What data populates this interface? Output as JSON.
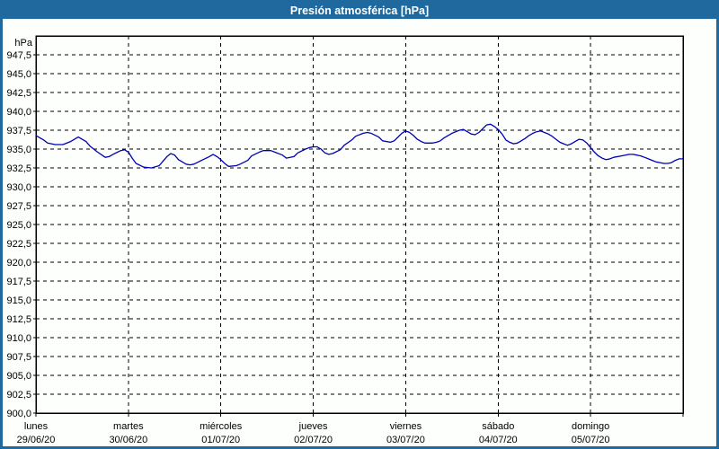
{
  "window": {
    "title": "Presión atmosférica [hPa]"
  },
  "colors": {
    "frame": "#1f699e",
    "titlebar": "#1f699e",
    "title_text": "#ffffff",
    "background": "#fdfffd",
    "plot_border": "#000000",
    "gridline": "#000000",
    "tick_label": "#000000",
    "line": "#0000b2"
  },
  "chart_data": {
    "type": "line",
    "title": "Presión atmosférica [hPa]",
    "ylabel": "hPa",
    "ylim": [
      900,
      950
    ],
    "ytick_step": 2.5,
    "ytick_labels": [
      "900,0",
      "902,5",
      "905,0",
      "907,5",
      "910,0",
      "912,5",
      "915,0",
      "917,5",
      "920,0",
      "922,5",
      "925,0",
      "927,5",
      "930,0",
      "932,5",
      "935,0",
      "937,5",
      "940,0",
      "942,5",
      "945,0",
      "947,5"
    ],
    "grid": "dashed",
    "legend": "none",
    "x_unit": "hours",
    "xlim": [
      0,
      168
    ],
    "hours_per_day": 24,
    "categories": [
      {
        "day": "lunes",
        "date": "29/06/20"
      },
      {
        "day": "martes",
        "date": "30/06/20"
      },
      {
        "day": "miércoles",
        "date": "01/07/20"
      },
      {
        "day": "jueves",
        "date": "02/07/20"
      },
      {
        "day": "viernes",
        "date": "03/07/20"
      },
      {
        "day": "sábado",
        "date": "04/07/20"
      },
      {
        "day": "domingo",
        "date": "05/07/20"
      }
    ],
    "series": [
      {
        "name": "Presión atmosférica",
        "color": "#0000b2",
        "points": [
          [
            0,
            936.8
          ],
          [
            2,
            936.2
          ],
          [
            3,
            935.8
          ],
          [
            5,
            935.6
          ],
          [
            7,
            935.6
          ],
          [
            9,
            936.0
          ],
          [
            11,
            936.6
          ],
          [
            13,
            936.0
          ],
          [
            14,
            935.4
          ],
          [
            16,
            934.6
          ],
          [
            18,
            933.9
          ],
          [
            19,
            934.0
          ],
          [
            20,
            934.3
          ],
          [
            22,
            934.8
          ],
          [
            23,
            934.9
          ],
          [
            24,
            934.6
          ],
          [
            25,
            933.8
          ],
          [
            26,
            933.1
          ],
          [
            28,
            932.6
          ],
          [
            30,
            932.5
          ],
          [
            32,
            932.8
          ],
          [
            33,
            933.4
          ],
          [
            34,
            934.0
          ],
          [
            35,
            934.4
          ],
          [
            36,
            934.2
          ],
          [
            37,
            933.6
          ],
          [
            39,
            933.0
          ],
          [
            40,
            932.9
          ],
          [
            41,
            933.0
          ],
          [
            43,
            933.5
          ],
          [
            45,
            934.0
          ],
          [
            46,
            934.3
          ],
          [
            47,
            934.0
          ],
          [
            48,
            933.6
          ],
          [
            49,
            933.1
          ],
          [
            50,
            932.7
          ],
          [
            52,
            932.8
          ],
          [
            53,
            933.0
          ],
          [
            55,
            933.5
          ],
          [
            56,
            934.1
          ],
          [
            58,
            934.6
          ],
          [
            59,
            934.8
          ],
          [
            61,
            934.8
          ],
          [
            62,
            934.6
          ],
          [
            64,
            934.2
          ],
          [
            65,
            933.8
          ],
          [
            67,
            934.0
          ],
          [
            68,
            934.5
          ],
          [
            70,
            935.0
          ],
          [
            71,
            935.2
          ],
          [
            72,
            935.3
          ],
          [
            73,
            935.3
          ],
          [
            74,
            935.0
          ],
          [
            75,
            934.5
          ],
          [
            76,
            934.3
          ],
          [
            77,
            934.4
          ],
          [
            79,
            934.9
          ],
          [
            80,
            935.5
          ],
          [
            82,
            936.2
          ],
          [
            83,
            936.7
          ],
          [
            85,
            937.1
          ],
          [
            86,
            937.2
          ],
          [
            87,
            937.1
          ],
          [
            89,
            936.6
          ],
          [
            90,
            936.1
          ],
          [
            92,
            935.9
          ],
          [
            93,
            936.1
          ],
          [
            94,
            936.6
          ],
          [
            95,
            937.1
          ],
          [
            96,
            937.4
          ],
          [
            97,
            937.2
          ],
          [
            98,
            936.8
          ],
          [
            99,
            936.3
          ],
          [
            100,
            936.0
          ],
          [
            101,
            935.8
          ],
          [
            103,
            935.8
          ],
          [
            104,
            935.9
          ],
          [
            105,
            936.1
          ],
          [
            106,
            936.5
          ],
          [
            108,
            937.1
          ],
          [
            110,
            937.5
          ],
          [
            111,
            937.6
          ],
          [
            112,
            937.3
          ],
          [
            113,
            937.0
          ],
          [
            114,
            936.9
          ],
          [
            115,
            937.2
          ],
          [
            116,
            937.7
          ],
          [
            117,
            938.2
          ],
          [
            118,
            938.3
          ],
          [
            119,
            938.0
          ],
          [
            120,
            937.6
          ],
          [
            121,
            937.0
          ],
          [
            122,
            936.2
          ],
          [
            123,
            935.9
          ],
          [
            124,
            935.7
          ],
          [
            125,
            935.8
          ],
          [
            126,
            936.1
          ],
          [
            127,
            936.4
          ],
          [
            128,
            936.8
          ],
          [
            129,
            937.1
          ],
          [
            130,
            937.3
          ],
          [
            131,
            937.4
          ],
          [
            132,
            937.2
          ],
          [
            133,
            937.0
          ],
          [
            134,
            936.7
          ],
          [
            135,
            936.3
          ],
          [
            136,
            935.9
          ],
          [
            137,
            935.7
          ],
          [
            138,
            935.5
          ],
          [
            139,
            935.7
          ],
          [
            140,
            936.0
          ],
          [
            141,
            936.3
          ],
          [
            142,
            936.2
          ],
          [
            143,
            935.8
          ],
          [
            144,
            935.2
          ],
          [
            145,
            934.6
          ],
          [
            146,
            934.1
          ],
          [
            147,
            933.8
          ],
          [
            148,
            933.6
          ],
          [
            149,
            933.7
          ],
          [
            150,
            933.9
          ],
          [
            152,
            934.1
          ],
          [
            154,
            934.3
          ],
          [
            155,
            934.3
          ],
          [
            156,
            934.2
          ],
          [
            157,
            934.1
          ],
          [
            158,
            933.9
          ],
          [
            159,
            933.7
          ],
          [
            160,
            933.5
          ],
          [
            161,
            933.3
          ],
          [
            162,
            933.2
          ],
          [
            163,
            933.1
          ],
          [
            164,
            933.1
          ],
          [
            165,
            933.2
          ],
          [
            166,
            933.5
          ],
          [
            167,
            933.7
          ],
          [
            168,
            933.7
          ]
        ]
      }
    ]
  }
}
